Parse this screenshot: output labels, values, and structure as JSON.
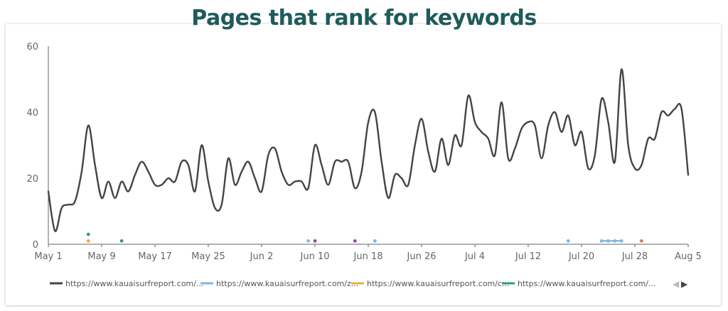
{
  "title": "Pages that rank for keywords",
  "colors": {
    "title": "#1f5b5b",
    "axis": "#666666",
    "tick_text": "#666666",
    "legend_text": "#555555",
    "nav": "#444444",
    "nav_disabled": "#bbbbbb"
  },
  "chart_data": {
    "type": "line",
    "title": "Pages that rank for keywords",
    "xlabel": "",
    "ylabel": "",
    "ylim": [
      0,
      60
    ],
    "yticks": [
      0,
      20,
      40,
      60
    ],
    "xlim": [
      "2023-05-01",
      "2023-08-05"
    ],
    "xticks": [
      {
        "date": "2023-05-01",
        "label": "May 1"
      },
      {
        "date": "2023-05-09",
        "label": "May 9"
      },
      {
        "date": "2023-05-17",
        "label": "May 17"
      },
      {
        "date": "2023-05-25",
        "label": "May 25"
      },
      {
        "date": "2023-06-02",
        "label": "Jun 2"
      },
      {
        "date": "2023-06-10",
        "label": "Jun 10"
      },
      {
        "date": "2023-06-18",
        "label": "Jun 18"
      },
      {
        "date": "2023-06-26",
        "label": "Jun 26"
      },
      {
        "date": "2023-07-04",
        "label": "Jul 4"
      },
      {
        "date": "2023-07-12",
        "label": "Jul 12"
      },
      {
        "date": "2023-07-20",
        "label": "Jul 20"
      },
      {
        "date": "2023-07-28",
        "label": "Jul 28"
      },
      {
        "date": "2023-08-05",
        "label": "Aug 5"
      }
    ],
    "grid": false,
    "legend_position": "bottom",
    "series": [
      {
        "name": "https://www.kauaisurfreport.com/...",
        "color": "#444444",
        "style": "line",
        "points": [
          [
            "2023-05-01",
            16
          ],
          [
            "2023-05-02",
            4
          ],
          [
            "2023-05-03",
            11
          ],
          [
            "2023-05-04",
            12
          ],
          [
            "2023-05-05",
            13
          ],
          [
            "2023-05-06",
            22
          ],
          [
            "2023-05-07",
            36
          ],
          [
            "2023-05-08",
            24
          ],
          [
            "2023-05-09",
            14
          ],
          [
            "2023-05-10",
            19
          ],
          [
            "2023-05-11",
            14
          ],
          [
            "2023-05-12",
            19
          ],
          [
            "2023-05-13",
            16
          ],
          [
            "2023-05-14",
            21
          ],
          [
            "2023-05-15",
            25
          ],
          [
            "2023-05-16",
            22
          ],
          [
            "2023-05-17",
            18
          ],
          [
            "2023-05-18",
            18
          ],
          [
            "2023-05-19",
            20
          ],
          [
            "2023-05-20",
            19
          ],
          [
            "2023-05-21",
            25
          ],
          [
            "2023-05-22",
            24
          ],
          [
            "2023-05-23",
            16
          ],
          [
            "2023-05-24",
            30
          ],
          [
            "2023-05-25",
            19
          ],
          [
            "2023-05-26",
            11
          ],
          [
            "2023-05-27",
            12
          ],
          [
            "2023-05-28",
            26
          ],
          [
            "2023-05-29",
            18
          ],
          [
            "2023-05-30",
            22
          ],
          [
            "2023-05-31",
            25
          ],
          [
            "2023-06-01",
            20
          ],
          [
            "2023-06-02",
            16
          ],
          [
            "2023-06-03",
            27
          ],
          [
            "2023-06-04",
            29
          ],
          [
            "2023-06-05",
            22
          ],
          [
            "2023-06-06",
            18
          ],
          [
            "2023-06-07",
            19
          ],
          [
            "2023-06-08",
            19
          ],
          [
            "2023-06-09",
            17
          ],
          [
            "2023-06-10",
            30
          ],
          [
            "2023-06-11",
            24
          ],
          [
            "2023-06-12",
            18
          ],
          [
            "2023-06-13",
            25
          ],
          [
            "2023-06-14",
            25
          ],
          [
            "2023-06-15",
            25
          ],
          [
            "2023-06-16",
            17
          ],
          [
            "2023-06-17",
            22
          ],
          [
            "2023-06-18",
            37
          ],
          [
            "2023-06-19",
            40
          ],
          [
            "2023-06-20",
            25
          ],
          [
            "2023-06-21",
            14
          ],
          [
            "2023-06-22",
            21
          ],
          [
            "2023-06-23",
            20
          ],
          [
            "2023-06-24",
            18
          ],
          [
            "2023-06-25",
            30
          ],
          [
            "2023-06-26",
            38
          ],
          [
            "2023-06-27",
            28
          ],
          [
            "2023-06-28",
            22
          ],
          [
            "2023-06-29",
            32
          ],
          [
            "2023-06-30",
            24
          ],
          [
            "2023-07-01",
            33
          ],
          [
            "2023-07-02",
            30
          ],
          [
            "2023-07-03",
            45
          ],
          [
            "2023-07-04",
            37
          ],
          [
            "2023-07-05",
            34
          ],
          [
            "2023-07-06",
            32
          ],
          [
            "2023-07-07",
            27
          ],
          [
            "2023-07-08",
            43
          ],
          [
            "2023-07-09",
            26
          ],
          [
            "2023-07-10",
            29
          ],
          [
            "2023-07-11",
            35
          ],
          [
            "2023-07-12",
            37
          ],
          [
            "2023-07-13",
            36
          ],
          [
            "2023-07-14",
            26
          ],
          [
            "2023-07-15",
            36
          ],
          [
            "2023-07-16",
            40
          ],
          [
            "2023-07-17",
            34
          ],
          [
            "2023-07-18",
            39
          ],
          [
            "2023-07-19",
            30
          ],
          [
            "2023-07-20",
            34
          ],
          [
            "2023-07-21",
            23
          ],
          [
            "2023-07-22",
            27
          ],
          [
            "2023-07-23",
            44
          ],
          [
            "2023-07-24",
            37
          ],
          [
            "2023-07-25",
            25
          ],
          [
            "2023-07-26",
            53
          ],
          [
            "2023-07-27",
            30
          ],
          [
            "2023-07-28",
            23
          ],
          [
            "2023-07-29",
            24
          ],
          [
            "2023-07-30",
            32
          ],
          [
            "2023-07-31",
            32
          ],
          [
            "2023-08-01",
            40
          ],
          [
            "2023-08-02",
            39
          ],
          [
            "2023-08-03",
            41
          ],
          [
            "2023-08-04",
            41
          ],
          [
            "2023-08-05",
            21
          ]
        ]
      },
      {
        "name": "https://www.kauaisurfreport.com/z...",
        "color": "#7ab8e6",
        "style": "points",
        "points": [
          [
            "2023-06-09",
            1
          ],
          [
            "2023-06-19",
            1
          ],
          [
            "2023-07-18",
            1
          ],
          [
            "2023-07-23",
            1
          ],
          [
            "2023-07-24",
            1
          ],
          [
            "2023-07-25",
            1
          ],
          [
            "2023-07-26",
            1
          ]
        ]
      },
      {
        "name": "https://www.kauaisurfreport.com/c...",
        "color": "#e2b13c",
        "style": "points",
        "points": [
          [
            "2023-05-07",
            1
          ]
        ]
      },
      {
        "name": "https://www.kauaisurfreport.com/...",
        "color": "#2e9e6b",
        "style": "points",
        "points": [
          [
            "2023-05-07",
            3
          ],
          [
            "2023-05-12",
            1
          ]
        ]
      },
      {
        "name": "",
        "color": "#8e4a9e",
        "style": "points",
        "points": [
          [
            "2023-06-10",
            1
          ],
          [
            "2023-06-16",
            1
          ]
        ]
      },
      {
        "name": "",
        "color": "#e0735a",
        "style": "points",
        "points": [
          [
            "2023-07-29",
            1
          ]
        ]
      }
    ],
    "legend": [
      {
        "label": "https://www.kauaisurfreport.com/...",
        "color": "#444444"
      },
      {
        "label": "https://www.kauaisurfreport.com/z...",
        "color": "#7ab8e6"
      },
      {
        "label": "https://www.kauaisurfreport.com/c...",
        "color": "#e2b13c"
      },
      {
        "label": "https://www.kauaisurfreport.com/...",
        "color": "#2e9e6b"
      }
    ]
  },
  "legend_nav": {
    "prev_icon": "chevron-left-icon",
    "next_icon": "chevron-right-icon",
    "prev_glyph": "◀",
    "next_glyph": "▶"
  }
}
